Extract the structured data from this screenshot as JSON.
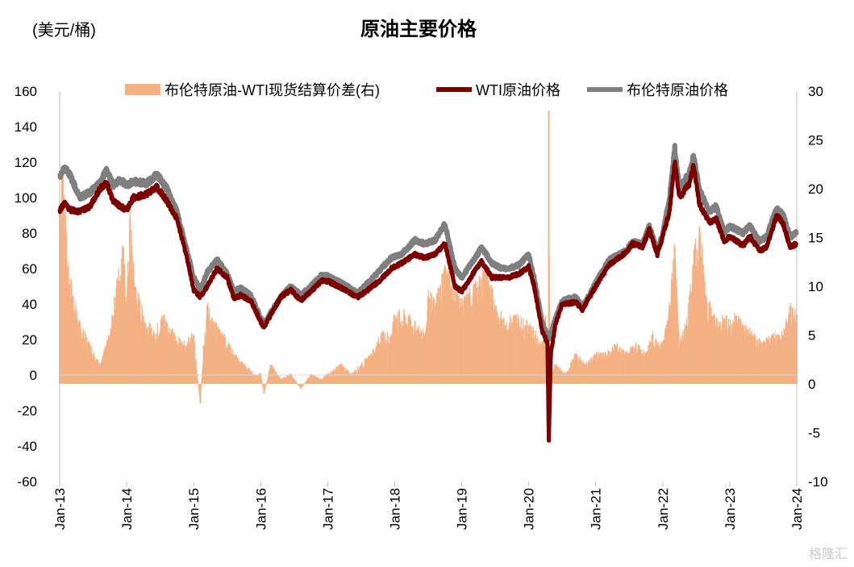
{
  "chart_data": {
    "type": "line+bar",
    "title": "原油主要价格",
    "ylabel_left": "(美元/桶)",
    "ylim_left": [
      -60,
      160
    ],
    "yticks_left": [
      160,
      140,
      120,
      100,
      80,
      60,
      40,
      20,
      0,
      -20,
      -40,
      -60
    ],
    "ylim_right": [
      -10,
      30
    ],
    "yticks_right": [
      30,
      25,
      20,
      15,
      10,
      5,
      0,
      -5,
      -10
    ],
    "xlim": [
      2013.0,
      2024.0
    ],
    "xticks": [
      "Jan-13",
      "Jan-14",
      "Jan-15",
      "Jan-16",
      "Jan-17",
      "Jan-18",
      "Jan-19",
      "Jan-20",
      "Jan-21",
      "Jan-22",
      "Jan-23",
      "Jan-24"
    ],
    "legend": [
      "布伦特原油-WTI现货结算价差(右)",
      "WTI原油价格",
      "布伦特原油价格"
    ],
    "colors": {
      "spread": "#f4b183",
      "wti": "#7b0000",
      "brent": "#7f7f7f"
    },
    "series": [
      {
        "name": "布伦特原油价格",
        "axis": "left",
        "points": [
          [
            2013.0,
            112
          ],
          [
            2013.08,
            117
          ],
          [
            2013.15,
            113
          ],
          [
            2013.3,
            100
          ],
          [
            2013.45,
            103
          ],
          [
            2013.6,
            108
          ],
          [
            2013.7,
            116
          ],
          [
            2013.8,
            107
          ],
          [
            2013.9,
            110
          ],
          [
            2014.0,
            107
          ],
          [
            2014.1,
            109
          ],
          [
            2014.3,
            108
          ],
          [
            2014.45,
            113
          ],
          [
            2014.6,
            105
          ],
          [
            2014.75,
            92
          ],
          [
            2014.9,
            70
          ],
          [
            2015.0,
            55
          ],
          [
            2015.1,
            48
          ],
          [
            2015.2,
            58
          ],
          [
            2015.35,
            65
          ],
          [
            2015.5,
            57
          ],
          [
            2015.6,
            47
          ],
          [
            2015.7,
            49
          ],
          [
            2015.85,
            45
          ],
          [
            2016.0,
            32
          ],
          [
            2016.05,
            29
          ],
          [
            2016.15,
            35
          ],
          [
            2016.3,
            44
          ],
          [
            2016.45,
            50
          ],
          [
            2016.6,
            45
          ],
          [
            2016.75,
            50
          ],
          [
            2016.9,
            56
          ],
          [
            2017.0,
            56
          ],
          [
            2017.2,
            52
          ],
          [
            2017.45,
            46
          ],
          [
            2017.6,
            52
          ],
          [
            2017.8,
            60
          ],
          [
            2017.95,
            66
          ],
          [
            2018.1,
            68
          ],
          [
            2018.3,
            76
          ],
          [
            2018.45,
            74
          ],
          [
            2018.6,
            76
          ],
          [
            2018.75,
            85
          ],
          [
            2018.9,
            60
          ],
          [
            2019.0,
            55
          ],
          [
            2019.2,
            66
          ],
          [
            2019.3,
            72
          ],
          [
            2019.45,
            63
          ],
          [
            2019.6,
            60
          ],
          [
            2019.7,
            60
          ],
          [
            2019.85,
            62
          ],
          [
            2020.0,
            68
          ],
          [
            2020.08,
            55
          ],
          [
            2020.2,
            30
          ],
          [
            2020.3,
            20
          ],
          [
            2020.4,
            32
          ],
          [
            2020.5,
            42
          ],
          [
            2020.7,
            44
          ],
          [
            2020.8,
            38
          ],
          [
            2021.0,
            52
          ],
          [
            2021.2,
            65
          ],
          [
            2021.45,
            70
          ],
          [
            2021.55,
            75
          ],
          [
            2021.7,
            74
          ],
          [
            2021.8,
            84
          ],
          [
            2021.92,
            70
          ],
          [
            2022.0,
            80
          ],
          [
            2022.1,
            100
          ],
          [
            2022.18,
            128
          ],
          [
            2022.25,
            105
          ],
          [
            2022.4,
            114
          ],
          [
            2022.46,
            124
          ],
          [
            2022.55,
            104
          ],
          [
            2022.7,
            92
          ],
          [
            2022.8,
            95
          ],
          [
            2022.92,
            80
          ],
          [
            2023.0,
            84
          ],
          [
            2023.2,
            80
          ],
          [
            2023.3,
            84
          ],
          [
            2023.45,
            75
          ],
          [
            2023.55,
            78
          ],
          [
            2023.7,
            94
          ],
          [
            2023.8,
            90
          ],
          [
            2023.9,
            78
          ],
          [
            2024.0,
            80
          ]
        ]
      },
      {
        "name": "WTI原油价格",
        "axis": "left",
        "points": [
          [
            2013.0,
            93
          ],
          [
            2013.08,
            97
          ],
          [
            2013.15,
            93
          ],
          [
            2013.3,
            92
          ],
          [
            2013.45,
            95
          ],
          [
            2013.6,
            105
          ],
          [
            2013.7,
            108
          ],
          [
            2013.8,
            98
          ],
          [
            2013.9,
            95
          ],
          [
            2014.0,
            93
          ],
          [
            2014.1,
            100
          ],
          [
            2014.3,
            102
          ],
          [
            2014.45,
            106
          ],
          [
            2014.6,
            98
          ],
          [
            2014.75,
            88
          ],
          [
            2014.9,
            66
          ],
          [
            2015.0,
            48
          ],
          [
            2015.1,
            44
          ],
          [
            2015.2,
            50
          ],
          [
            2015.35,
            60
          ],
          [
            2015.5,
            55
          ],
          [
            2015.6,
            43
          ],
          [
            2015.7,
            45
          ],
          [
            2015.85,
            42
          ],
          [
            2016.0,
            30
          ],
          [
            2016.05,
            27
          ],
          [
            2016.15,
            34
          ],
          [
            2016.3,
            44
          ],
          [
            2016.45,
            48
          ],
          [
            2016.6,
            42
          ],
          [
            2016.75,
            47
          ],
          [
            2016.9,
            53
          ],
          [
            2017.0,
            53
          ],
          [
            2017.2,
            49
          ],
          [
            2017.45,
            44
          ],
          [
            2017.6,
            48
          ],
          [
            2017.8,
            54
          ],
          [
            2017.95,
            60
          ],
          [
            2018.1,
            63
          ],
          [
            2018.3,
            68
          ],
          [
            2018.45,
            66
          ],
          [
            2018.6,
            68
          ],
          [
            2018.75,
            74
          ],
          [
            2018.9,
            50
          ],
          [
            2019.0,
            47
          ],
          [
            2019.2,
            59
          ],
          [
            2019.3,
            64
          ],
          [
            2019.45,
            55
          ],
          [
            2019.6,
            55
          ],
          [
            2019.7,
            55
          ],
          [
            2019.85,
            57
          ],
          [
            2020.0,
            61
          ],
          [
            2020.08,
            50
          ],
          [
            2020.2,
            25
          ],
          [
            2020.28,
            18
          ],
          [
            2020.3,
            -37
          ],
          [
            2020.33,
            12
          ],
          [
            2020.4,
            29
          ],
          [
            2020.5,
            40
          ],
          [
            2020.7,
            41
          ],
          [
            2020.8,
            37
          ],
          [
            2021.0,
            50
          ],
          [
            2021.2,
            62
          ],
          [
            2021.45,
            69
          ],
          [
            2021.55,
            74
          ],
          [
            2021.7,
            72
          ],
          [
            2021.8,
            82
          ],
          [
            2021.92,
            68
          ],
          [
            2022.0,
            78
          ],
          [
            2022.1,
            92
          ],
          [
            2022.18,
            120
          ],
          [
            2022.25,
            100
          ],
          [
            2022.4,
            108
          ],
          [
            2022.46,
            118
          ],
          [
            2022.55,
            96
          ],
          [
            2022.7,
            86
          ],
          [
            2022.8,
            88
          ],
          [
            2022.92,
            75
          ],
          [
            2023.0,
            78
          ],
          [
            2023.2,
            73
          ],
          [
            2023.3,
            78
          ],
          [
            2023.45,
            70
          ],
          [
            2023.55,
            72
          ],
          [
            2023.7,
            90
          ],
          [
            2023.8,
            85
          ],
          [
            2023.9,
            72
          ],
          [
            2024.0,
            74
          ]
        ]
      },
      {
        "name": "布伦特原油-WTI现货结算价差(右)",
        "axis": "right",
        "points": [
          [
            2013.0,
            18
          ],
          [
            2013.05,
            22
          ],
          [
            2013.12,
            12
          ],
          [
            2013.2,
            9
          ],
          [
            2013.3,
            6
          ],
          [
            2013.45,
            4
          ],
          [
            2013.6,
            2
          ],
          [
            2013.75,
            5
          ],
          [
            2013.85,
            10
          ],
          [
            2013.95,
            14
          ],
          [
            2014.0,
            8
          ],
          [
            2014.05,
            17
          ],
          [
            2014.12,
            10
          ],
          [
            2014.25,
            7
          ],
          [
            2014.4,
            5
          ],
          [
            2014.55,
            7
          ],
          [
            2014.7,
            5
          ],
          [
            2014.85,
            4
          ],
          [
            2015.0,
            5
          ],
          [
            2015.05,
            1
          ],
          [
            2015.1,
            -2
          ],
          [
            2015.15,
            4
          ],
          [
            2015.2,
            8
          ],
          [
            2015.3,
            6
          ],
          [
            2015.45,
            5
          ],
          [
            2015.6,
            3
          ],
          [
            2015.75,
            2
          ],
          [
            2015.9,
            1
          ],
          [
            2016.0,
            1
          ],
          [
            2016.05,
            -1
          ],
          [
            2016.15,
            2
          ],
          [
            2016.3,
            0.5
          ],
          [
            2016.45,
            1
          ],
          [
            2016.6,
            -0.5
          ],
          [
            2016.75,
            1
          ],
          [
            2016.9,
            0.5
          ],
          [
            2017.0,
            1
          ],
          [
            2017.2,
            2
          ],
          [
            2017.35,
            1
          ],
          [
            2017.5,
            2
          ],
          [
            2017.65,
            3
          ],
          [
            2017.8,
            5
          ],
          [
            2017.95,
            5
          ],
          [
            2018.0,
            7
          ],
          [
            2018.15,
            7
          ],
          [
            2018.3,
            6
          ],
          [
            2018.45,
            5
          ],
          [
            2018.5,
            9
          ],
          [
            2018.6,
            8
          ],
          [
            2018.75,
            12
          ],
          [
            2018.85,
            10
          ],
          [
            2018.95,
            9
          ],
          [
            2019.0,
            8
          ],
          [
            2019.1,
            9
          ],
          [
            2019.25,
            10
          ],
          [
            2019.35,
            12
          ],
          [
            2019.5,
            8
          ],
          [
            2019.65,
            6
          ],
          [
            2019.8,
            7
          ],
          [
            2019.95,
            6
          ],
          [
            2020.0,
            6
          ],
          [
            2020.1,
            5
          ],
          [
            2020.2,
            4
          ],
          [
            2020.25,
            7
          ],
          [
            2020.29,
            1
          ],
          [
            2020.3,
            28
          ],
          [
            2020.32,
            0.5
          ],
          [
            2020.4,
            2
          ],
          [
            2020.55,
            1
          ],
          [
            2020.7,
            3
          ],
          [
            2020.85,
            2
          ],
          [
            2021.0,
            3
          ],
          [
            2021.15,
            3
          ],
          [
            2021.3,
            4
          ],
          [
            2021.45,
            3
          ],
          [
            2021.6,
            4
          ],
          [
            2021.75,
            3
          ],
          [
            2021.85,
            5
          ],
          [
            2021.92,
            4
          ],
          [
            2022.0,
            4
          ],
          [
            2022.1,
            8
          ],
          [
            2022.18,
            14
          ],
          [
            2022.25,
            4
          ],
          [
            2022.35,
            6
          ],
          [
            2022.45,
            12
          ],
          [
            2022.55,
            16
          ],
          [
            2022.65,
            9
          ],
          [
            2022.75,
            7
          ],
          [
            2022.85,
            6
          ],
          [
            2022.95,
            7
          ],
          [
            2023.0,
            6
          ],
          [
            2023.1,
            7
          ],
          [
            2023.2,
            6
          ],
          [
            2023.35,
            5
          ],
          [
            2023.5,
            4
          ],
          [
            2023.65,
            5
          ],
          [
            2023.8,
            5
          ],
          [
            2023.9,
            8
          ],
          [
            2024.0,
            7
          ]
        ]
      }
    ]
  },
  "watermark": "格隆汇"
}
